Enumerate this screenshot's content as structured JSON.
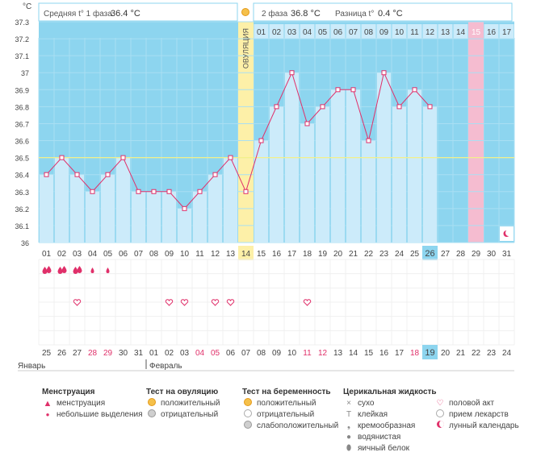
{
  "header": {
    "unit": "°C",
    "phase1_label": "Средняя t° 1 фаза",
    "phase1_value": "36.4 °C",
    "phase2_label": "2 фаза",
    "phase2_value": "36.8 °C",
    "diff_label": "Разница t°",
    "diff_value": "0.4 °C",
    "ovulation_label": "ОВУЛЯЦИЯ"
  },
  "chart_data": {
    "type": "line",
    "ylim": [
      36,
      37.3
    ],
    "yticks": [
      "37.3",
      "37.2",
      "37.1",
      "37",
      "36.9",
      "36.8",
      "36.7",
      "36.6",
      "36.5",
      "36.4",
      "36.3",
      "36.2",
      "36.1",
      "36"
    ],
    "coverline": 36.5,
    "cycle_days": [
      "01",
      "02",
      "03",
      "04",
      "05",
      "06",
      "07",
      "08",
      "09",
      "10",
      "11",
      "12",
      "13",
      "14",
      "15",
      "16",
      "17",
      "18",
      "19",
      "20",
      "21",
      "22",
      "23",
      "24",
      "25",
      "26",
      "27",
      "28",
      "29",
      "30",
      "31"
    ],
    "phase2_days": [
      "01",
      "02",
      "03",
      "04",
      "05",
      "06",
      "07",
      "08",
      "09",
      "10",
      "11",
      "12",
      "13",
      "14",
      "15",
      "16",
      "17"
    ],
    "dates": [
      "25",
      "26",
      "27",
      "28",
      "29",
      "30",
      "31",
      "01",
      "02",
      "03",
      "04",
      "05",
      "06",
      "07",
      "08",
      "09",
      "10",
      "11",
      "12",
      "13",
      "14",
      "15",
      "16",
      "17",
      "18",
      "19",
      "20",
      "21",
      "22",
      "23",
      "24"
    ],
    "red_dates": [
      3,
      4,
      10,
      11,
      17,
      18,
      24
    ],
    "today_index": 25,
    "months": [
      "Январь",
      "Февраль"
    ],
    "temperatures": [
      36.4,
      36.5,
      36.4,
      36.3,
      36.4,
      36.5,
      36.3,
      36.3,
      36.3,
      36.2,
      36.3,
      36.4,
      36.5,
      36.3,
      36.6,
      36.8,
      37.0,
      36.7,
      36.8,
      36.9,
      36.9,
      36.6,
      37.0,
      36.8,
      36.9,
      36.8
    ],
    "ovulation_index": 13,
    "pink_index": 28,
    "menstruation": [
      2,
      2,
      2,
      1,
      1,
      0
    ],
    "intercourse": [
      2,
      8,
      9,
      11,
      12,
      17
    ]
  },
  "legend": {
    "menstruation": {
      "title": "Менструация",
      "items": [
        "менструация",
        "небольшие выделения"
      ]
    },
    "ovulation_test": {
      "title": "Тест на овуляцию",
      "items": [
        "положительный",
        "отрицательный"
      ]
    },
    "pregnancy_test": {
      "title": "Тест на беременность",
      "items": [
        "положительный",
        "отрицательный",
        "слабоположительный"
      ]
    },
    "cervical": {
      "title": "Церикальная жидкость",
      "items": [
        "сухо",
        "клейкая",
        "кремообразная",
        "водянистая",
        "яичный белок"
      ]
    },
    "other": [
      "половой акт",
      "прием лекарств",
      "лунный календарь"
    ]
  },
  "colors": {
    "plot_bg": "#8dd5ef",
    "bar_fill": "#ccebfa",
    "line": "#e0306a",
    "ovulation": "#fdf0a8",
    "pink": "#f5bcd0",
    "coverline": "#f3f08a",
    "today": "#8dd5ef"
  }
}
